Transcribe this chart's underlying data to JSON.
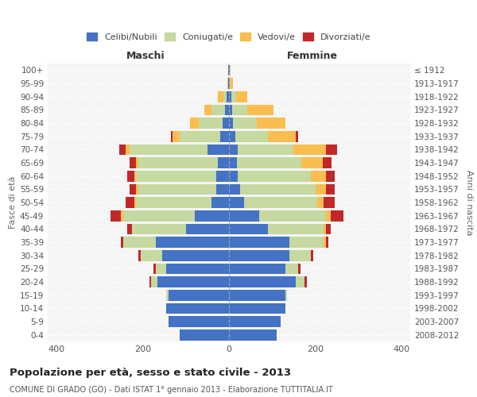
{
  "age_groups": [
    "0-4",
    "5-9",
    "10-14",
    "15-19",
    "20-24",
    "25-29",
    "30-34",
    "35-39",
    "40-44",
    "45-49",
    "50-54",
    "55-59",
    "60-64",
    "65-69",
    "70-74",
    "75-79",
    "80-84",
    "85-89",
    "90-94",
    "95-99",
    "100+"
  ],
  "birth_years": [
    "2008-2012",
    "2003-2007",
    "1998-2002",
    "1993-1997",
    "1988-1992",
    "1983-1987",
    "1978-1982",
    "1973-1977",
    "1968-1972",
    "1963-1967",
    "1958-1962",
    "1953-1957",
    "1948-1952",
    "1943-1947",
    "1938-1942",
    "1933-1937",
    "1928-1932",
    "1923-1927",
    "1918-1922",
    "1913-1917",
    "≤ 1912"
  ],
  "male_celibi": [
    115,
    140,
    145,
    140,
    165,
    145,
    155,
    170,
    100,
    80,
    40,
    30,
    30,
    25,
    50,
    20,
    15,
    10,
    5,
    2,
    2
  ],
  "male_coniugati": [
    0,
    0,
    0,
    5,
    15,
    25,
    50,
    75,
    125,
    165,
    175,
    180,
    185,
    185,
    180,
    95,
    55,
    30,
    8,
    0,
    0
  ],
  "male_vedovi": [
    0,
    0,
    0,
    0,
    0,
    0,
    0,
    0,
    0,
    5,
    5,
    5,
    5,
    5,
    10,
    15,
    20,
    18,
    12,
    2,
    0
  ],
  "male_divorziati": [
    0,
    0,
    0,
    0,
    5,
    5,
    5,
    5,
    10,
    25,
    20,
    15,
    15,
    15,
    15,
    5,
    0,
    0,
    0,
    0,
    0
  ],
  "female_celibi": [
    110,
    120,
    130,
    130,
    155,
    130,
    140,
    140,
    90,
    70,
    35,
    25,
    20,
    18,
    20,
    15,
    10,
    8,
    5,
    2,
    2
  ],
  "female_coniugati": [
    0,
    0,
    0,
    5,
    20,
    30,
    50,
    80,
    130,
    155,
    170,
    175,
    170,
    150,
    130,
    75,
    55,
    35,
    12,
    2,
    0
  ],
  "female_vedovi": [
    0,
    0,
    0,
    0,
    0,
    0,
    0,
    5,
    5,
    10,
    15,
    25,
    35,
    50,
    75,
    65,
    65,
    60,
    25,
    5,
    2
  ],
  "female_divorziati": [
    0,
    0,
    0,
    0,
    5,
    5,
    5,
    5,
    10,
    30,
    25,
    20,
    20,
    20,
    25,
    5,
    0,
    0,
    0,
    0,
    0
  ],
  "colors": {
    "celibi": "#4472c4",
    "coniugati": "#c5d9a0",
    "vedovi": "#f9be4f",
    "divorziati": "#c0282a"
  },
  "title": "Popolazione per età, sesso e stato civile - 2013",
  "subtitle": "COMUNE DI GRADO (GO) - Dati ISTAT 1° gennaio 2013 - Elaborazione TUTTITALIA.IT",
  "xlabel_left": "Maschi",
  "xlabel_right": "Femmine",
  "ylabel_left": "Fasce di età",
  "ylabel_right": "Anni di nascita",
  "xlim": 420,
  "legend_labels": [
    "Celibi/Nubili",
    "Coniugati/e",
    "Vedovi/e",
    "Divorziati/e"
  ],
  "background": "#ffffff",
  "plot_bg": "#f5f5f5"
}
